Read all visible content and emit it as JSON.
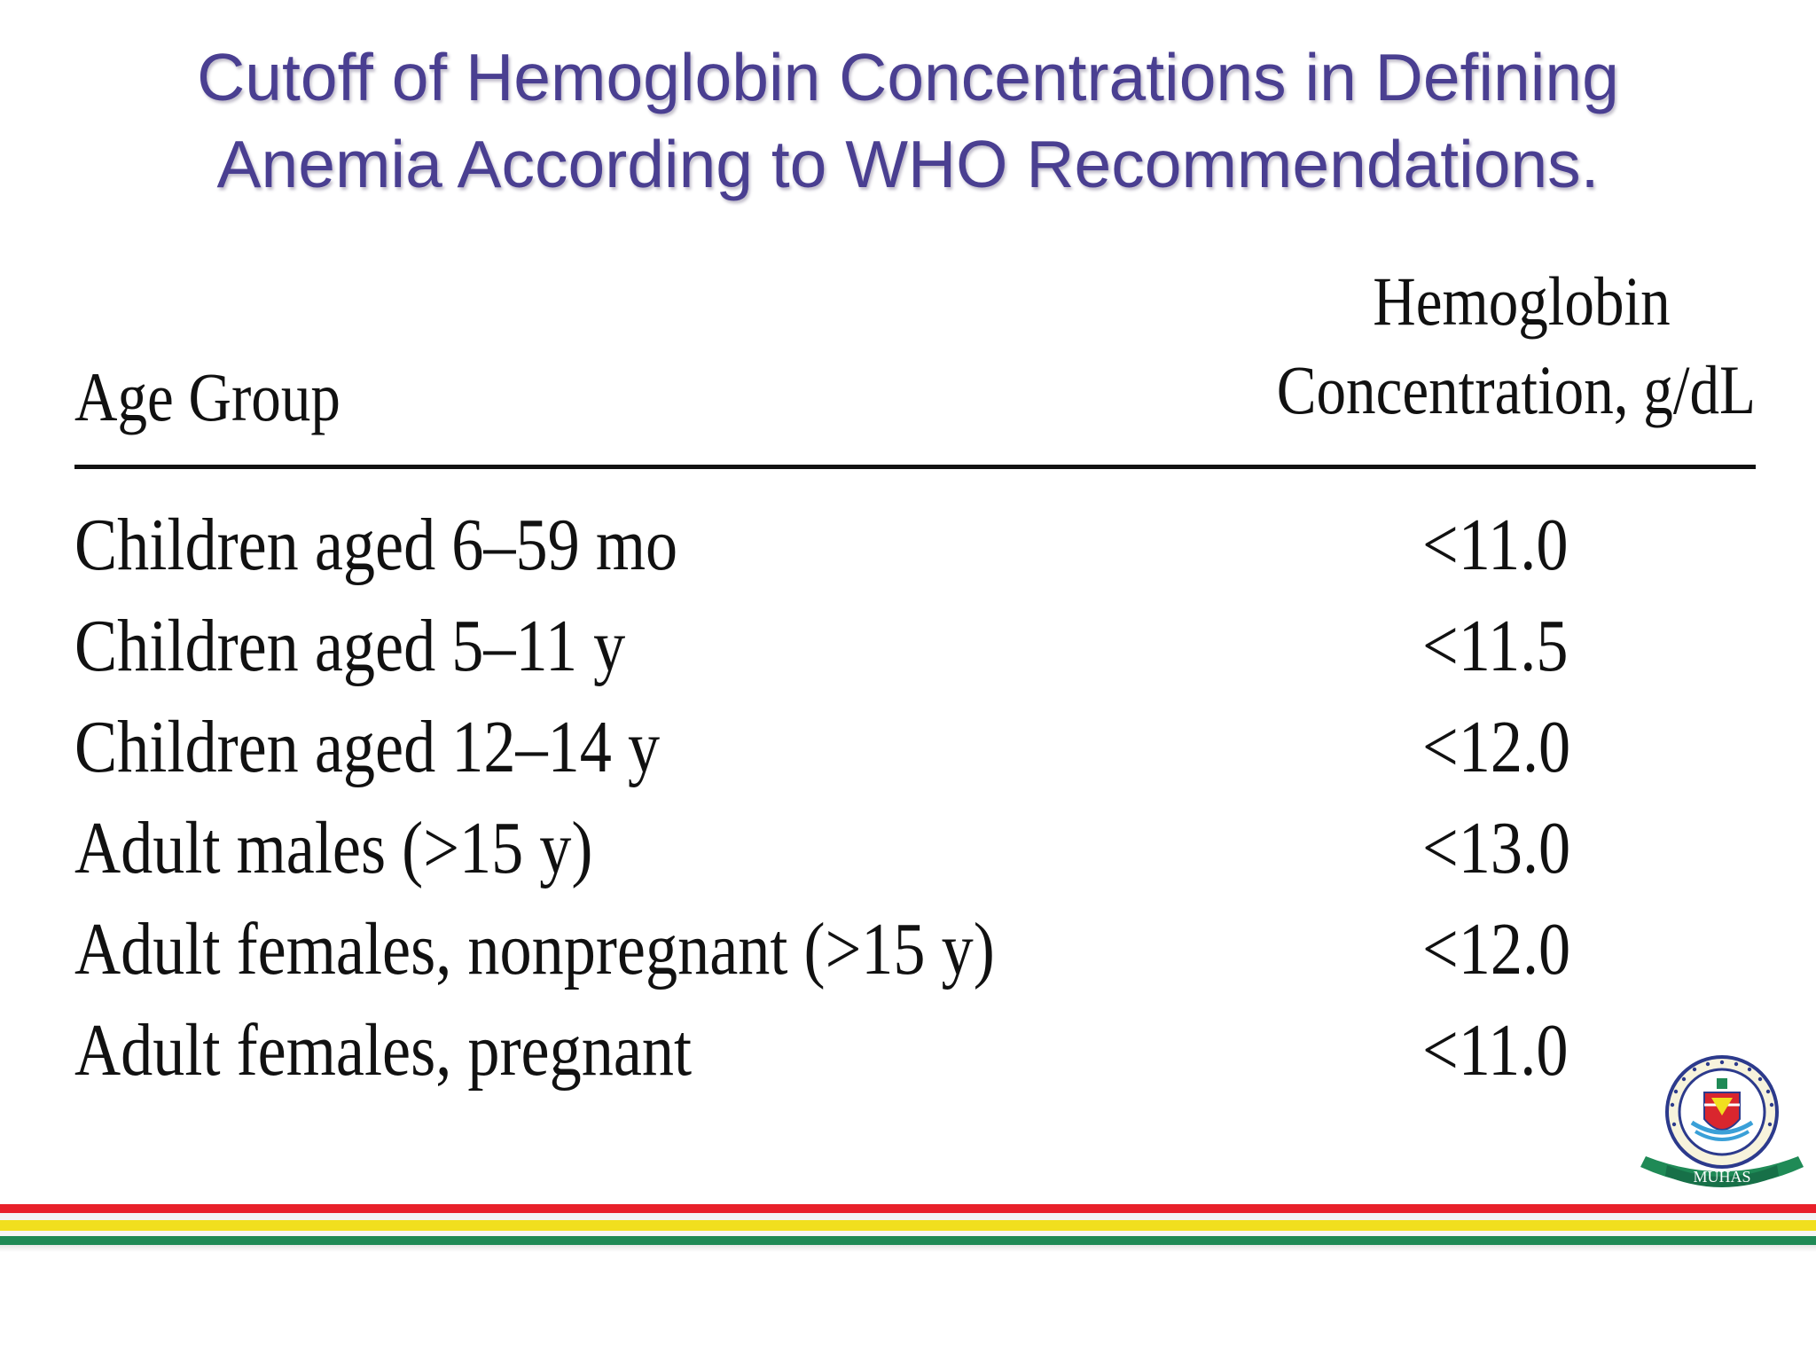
{
  "title": {
    "line1": "Cutoff of Hemoglobin Concentrations in Defining",
    "line2": "Anemia According to WHO Recommendations."
  },
  "table": {
    "header_age": "Age Group",
    "header_hb_line1": "Hemoglobin",
    "header_hb_line2": "Concentration, g/dL",
    "rows": [
      {
        "age": "Children aged 6–59 mo",
        "hb": "<11.0"
      },
      {
        "age": "Children aged 5–11 y",
        "hb": "<11.5"
      },
      {
        "age": "Children aged 12–14 y",
        "hb": "<12.0"
      },
      {
        "age": "Adult males (>15 y)",
        "hb": "<13.0"
      },
      {
        "age": "Adult females, nonpregnant (>15 y)",
        "hb": "<12.0"
      },
      {
        "age": "Adult females, pregnant",
        "hb": "<11.0"
      }
    ]
  },
  "logo": {
    "banner_text": "MUHAS",
    "icon": "university-seal-icon"
  },
  "colors": {
    "title": "#4a3f91",
    "stripe_red": "#e8202a",
    "stripe_yellow": "#f1df1e",
    "stripe_green": "#1f8a56"
  }
}
